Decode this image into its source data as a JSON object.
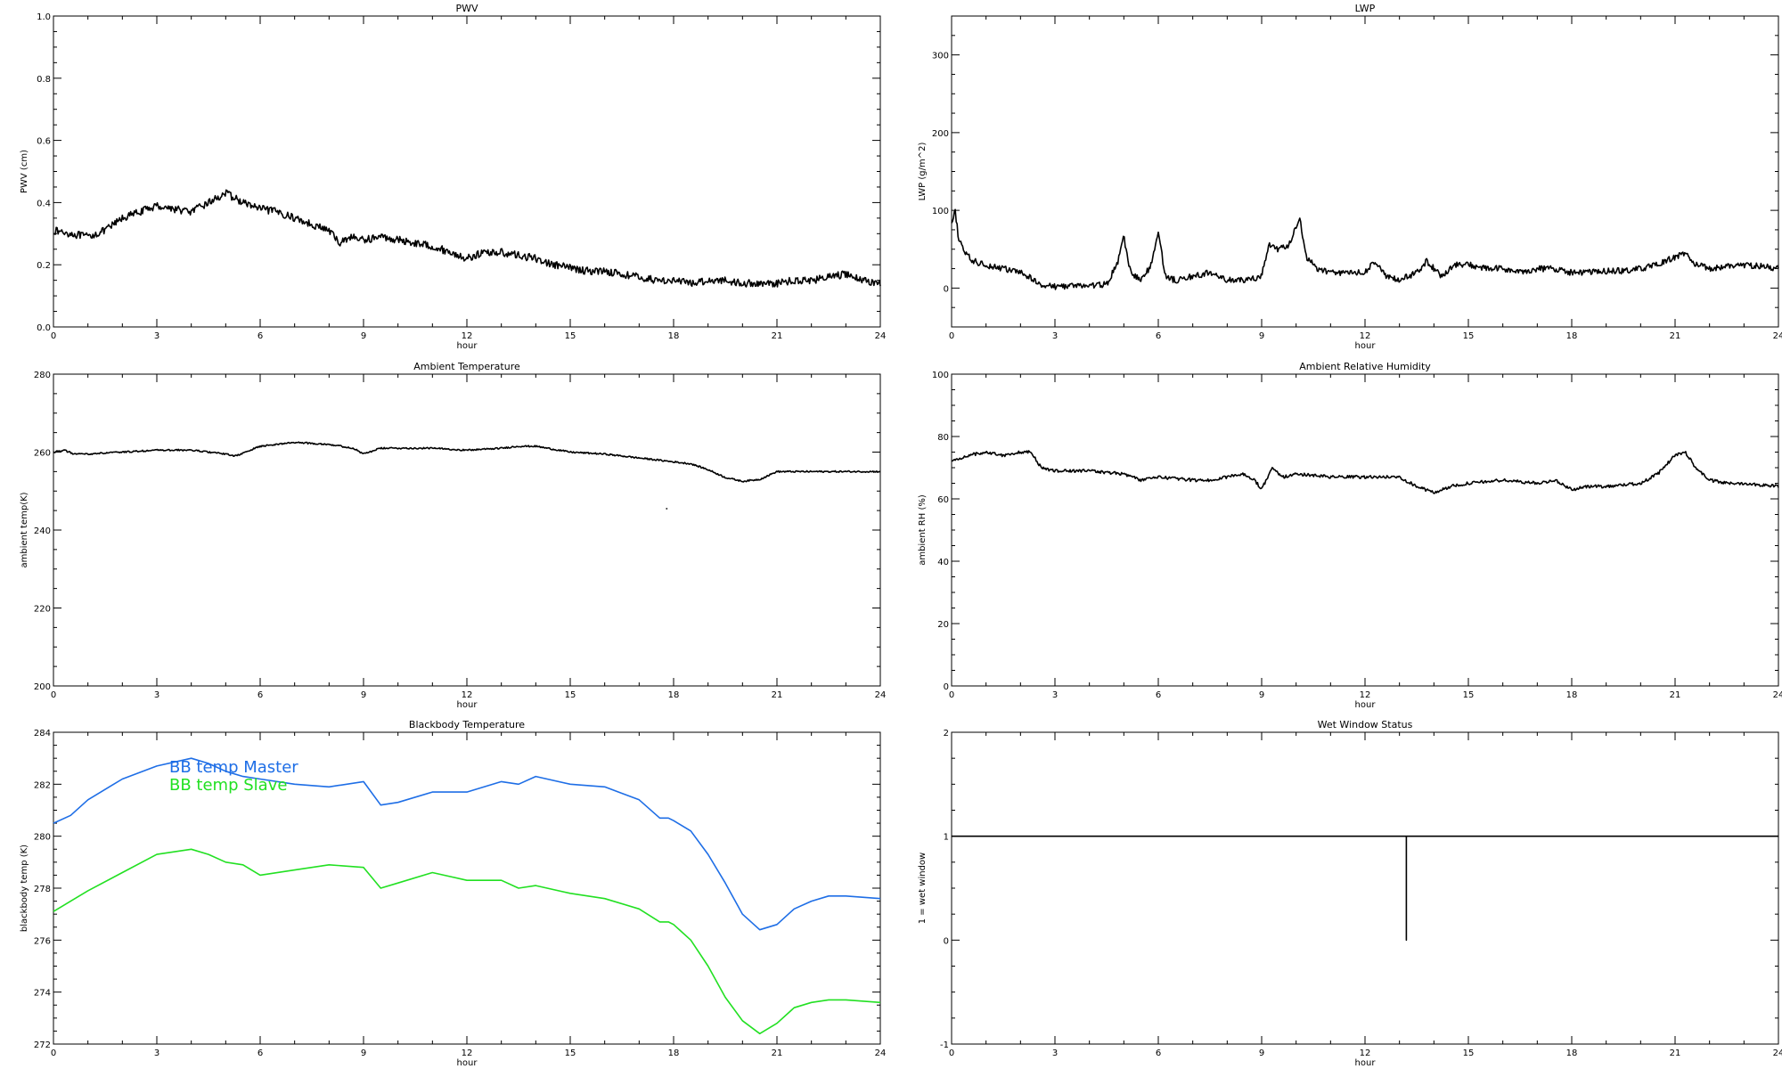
{
  "chart_data": [
    {
      "id": "pwv",
      "type": "line",
      "title": "PWV",
      "xlabel": "hour",
      "ylabel": "PWV (cm)",
      "xlim": [
        0,
        24
      ],
      "ylim": [
        0,
        1
      ],
      "xticks": [
        "0",
        "3",
        "6",
        "9",
        "12",
        "15",
        "18",
        "21",
        "24"
      ],
      "yticks": [
        0,
        0.2,
        0.4,
        0.6,
        0.8,
        1.0
      ],
      "ytick_labels": [
        "0.0",
        "0.2",
        "0.4",
        "0.6",
        "0.8",
        "1.0"
      ],
      "series": [
        {
          "color": "#000000",
          "noise": 0.012,
          "x": [
            0,
            0.5,
            1,
            1.5,
            2,
            2.5,
            3,
            3.5,
            4,
            4.5,
            5,
            5.5,
            6,
            6.5,
            7,
            7.5,
            8,
            8.3,
            8.6,
            9,
            9.5,
            10,
            10.5,
            11,
            11.5,
            12,
            12.5,
            13,
            13.5,
            14,
            14.5,
            15,
            15.5,
            16,
            16.5,
            17,
            17.5,
            18,
            18.5,
            19,
            19.5,
            20,
            20.5,
            21,
            21.5,
            22,
            22.5,
            23,
            23.5,
            24
          ],
          "y": [
            0.31,
            0.3,
            0.29,
            0.31,
            0.35,
            0.37,
            0.39,
            0.38,
            0.37,
            0.4,
            0.43,
            0.4,
            0.38,
            0.37,
            0.35,
            0.33,
            0.31,
            0.27,
            0.29,
            0.28,
            0.29,
            0.28,
            0.27,
            0.26,
            0.24,
            0.22,
            0.24,
            0.24,
            0.23,
            0.22,
            0.2,
            0.19,
            0.18,
            0.18,
            0.17,
            0.16,
            0.15,
            0.15,
            0.14,
            0.15,
            0.15,
            0.14,
            0.14,
            0.14,
            0.15,
            0.15,
            0.16,
            0.17,
            0.15,
            0.14
          ]
        }
      ]
    },
    {
      "id": "lwp",
      "type": "line",
      "title": "LWP",
      "xlabel": "hour",
      "ylabel": "LWP (g/m^2)",
      "xlim": [
        0,
        24
      ],
      "ylim": [
        -50,
        350
      ],
      "xticks": [
        "0",
        "3",
        "6",
        "9",
        "12",
        "15",
        "18",
        "21",
        "24"
      ],
      "yticks": [
        0,
        100,
        200,
        300
      ],
      "ytick_labels": [
        "0",
        "100",
        "200",
        "300"
      ],
      "series": [
        {
          "color": "#000000",
          "noise": 4,
          "x": [
            0,
            0.1,
            0.2,
            0.4,
            0.6,
            1,
            1.5,
            2,
            2.4,
            2.7,
            3,
            3.5,
            4,
            4.5,
            4.8,
            5.0,
            5.2,
            5.5,
            5.8,
            6.0,
            6.2,
            6.5,
            7,
            7.5,
            8,
            8.5,
            9,
            9.2,
            9.5,
            9.8,
            10.1,
            10.3,
            10.6,
            11,
            11.5,
            12,
            12.3,
            12.6,
            13,
            13.5,
            13.8,
            14.2,
            14.6,
            15,
            15.5,
            16,
            16.5,
            17,
            17.5,
            18,
            18.5,
            19,
            19.5,
            20,
            20.5,
            21,
            21.3,
            21.6,
            22,
            22.5,
            23,
            23.5,
            24
          ],
          "y": [
            80,
            100,
            65,
            45,
            35,
            30,
            25,
            20,
            10,
            3,
            2,
            3,
            3,
            5,
            30,
            65,
            20,
            10,
            30,
            75,
            15,
            10,
            15,
            20,
            10,
            10,
            15,
            55,
            50,
            55,
            90,
            40,
            25,
            20,
            20,
            20,
            35,
            15,
            10,
            20,
            35,
            15,
            30,
            30,
            25,
            25,
            20,
            25,
            25,
            20,
            20,
            22,
            22,
            25,
            30,
            40,
            45,
            30,
            25,
            28,
            30,
            28,
            25
          ]
        }
      ]
    },
    {
      "id": "ambient-temperature",
      "type": "line",
      "title": "Ambient Temperature",
      "xlabel": "hour",
      "ylabel": "ambient temp(K)",
      "xlim": [
        0,
        24
      ],
      "ylim": [
        200,
        280
      ],
      "xticks": [
        "0",
        "3",
        "6",
        "9",
        "12",
        "15",
        "18",
        "21",
        "24"
      ],
      "yticks": [
        200,
        220,
        240,
        260,
        280
      ],
      "ytick_labels": [
        "200",
        "220",
        "240",
        "260",
        "280"
      ],
      "series": [
        {
          "color": "#000000",
          "noise": 0.2,
          "x": [
            0,
            0.3,
            0.6,
            1,
            2,
            3,
            4,
            5,
            5.3,
            6,
            7,
            8,
            8.7,
            9,
            9.5,
            10,
            11,
            12,
            13,
            13.5,
            14,
            15,
            16,
            17,
            17.5,
            18,
            18.5,
            19,
            19.5,
            20,
            20.5,
            21,
            22,
            23,
            24
          ],
          "y": [
            260,
            260.5,
            259.5,
            259.5,
            260,
            260.5,
            260.5,
            259.5,
            259,
            261.5,
            262.5,
            262,
            261,
            259.5,
            261,
            261,
            261,
            260.5,
            261,
            261.5,
            261.5,
            260,
            259.5,
            258.5,
            258,
            257.5,
            257,
            255.5,
            253.5,
            252.5,
            253,
            255,
            255,
            255,
            255
          ]
        }
      ],
      "outlier": {
        "x": 17.8,
        "y": 245.5
      }
    },
    {
      "id": "ambient-relative-humidity",
      "type": "line",
      "title": "Ambient Relative Humidity",
      "xlabel": "hour",
      "ylabel": "ambient RH (%)",
      "xlim": [
        0,
        24
      ],
      "ylim": [
        0,
        100
      ],
      "xticks": [
        "0",
        "3",
        "6",
        "9",
        "12",
        "15",
        "18",
        "21",
        "24"
      ],
      "yticks": [
        0,
        20,
        40,
        60,
        80,
        100
      ],
      "ytick_labels": [
        "0",
        "20",
        "40",
        "60",
        "80",
        "100"
      ],
      "series": [
        {
          "color": "#000000",
          "noise": 0.5,
          "x": [
            0,
            0.5,
            1,
            1.5,
            2,
            2.3,
            2.6,
            3,
            4,
            5,
            5.5,
            6,
            7,
            7.5,
            8,
            8.5,
            8.8,
            9,
            9.3,
            9.6,
            10,
            11,
            12,
            13,
            13.5,
            14,
            14.5,
            15,
            16,
            17,
            17.5,
            18,
            18.5,
            19,
            20,
            20.5,
            21,
            21.3,
            21.6,
            22,
            22.5,
            23,
            24
          ],
          "y": [
            72,
            74,
            75,
            74,
            75,
            75,
            70,
            69,
            69,
            68,
            66,
            67,
            66,
            66,
            67,
            68,
            66,
            63,
            70,
            67,
            68,
            67,
            67,
            67,
            64,
            62,
            64,
            65,
            66,
            65,
            66,
            63,
            64,
            64,
            65,
            68,
            74,
            75,
            70,
            66,
            65,
            65,
            64
          ]
        }
      ]
    },
    {
      "id": "blackbody-temperature",
      "type": "line",
      "title": "Blackbody Temperature",
      "xlabel": "hour",
      "ylabel": "blackbody temp (K)",
      "xlim": [
        0,
        24
      ],
      "ylim": [
        272,
        284
      ],
      "xticks": [
        "0",
        "3",
        "6",
        "9",
        "12",
        "15",
        "18",
        "21",
        "24"
      ],
      "yticks": [
        272,
        274,
        276,
        278,
        280,
        282,
        284
      ],
      "ytick_labels": [
        "272",
        "274",
        "276",
        "278",
        "280",
        "282",
        "284"
      ],
      "series": [
        {
          "name": "BB temp Master",
          "color": "#1e6ee6",
          "noise": 0,
          "x": [
            0,
            0.5,
            1,
            2,
            3,
            4,
            4.5,
            5,
            5.5,
            6,
            7,
            8,
            9,
            9.5,
            10,
            11,
            12,
            13,
            13.5,
            14,
            15,
            16,
            17,
            17.6,
            17.85,
            18,
            18.5,
            19,
            19.5,
            20,
            20.5,
            21,
            21.5,
            22,
            22.5,
            23,
            24
          ],
          "y": [
            280.5,
            280.8,
            281.4,
            282.2,
            282.7,
            283.0,
            282.8,
            282.5,
            282.3,
            282.2,
            282.0,
            281.9,
            282.1,
            281.2,
            281.3,
            281.7,
            281.7,
            282.1,
            282.0,
            282.3,
            282.0,
            281.9,
            281.4,
            280.7,
            280.7,
            280.6,
            280.2,
            279.3,
            278.2,
            277.0,
            276.4,
            276.6,
            277.2,
            277.5,
            277.7,
            277.7,
            277.6
          ]
        },
        {
          "name": "BB temp Slave",
          "color": "#22e022",
          "noise": 0,
          "x": [
            0,
            0.5,
            1,
            2,
            3,
            4,
            4.5,
            5,
            5.5,
            6,
            7,
            8,
            9,
            9.5,
            10,
            11,
            12,
            12.5,
            13,
            13.5,
            14,
            15,
            16,
            17,
            17.6,
            17.85,
            18,
            18.5,
            19,
            19.5,
            20,
            20.5,
            21,
            21.5,
            22,
            22.5,
            23,
            24
          ],
          "y": [
            277.1,
            277.5,
            277.9,
            278.6,
            279.3,
            279.5,
            279.3,
            279.0,
            278.9,
            278.5,
            278.7,
            278.9,
            278.8,
            278.0,
            278.2,
            278.6,
            278.3,
            278.3,
            278.3,
            278.0,
            278.1,
            277.8,
            277.6,
            277.2,
            276.7,
            276.7,
            276.6,
            276.0,
            275.0,
            273.8,
            272.9,
            272.4,
            272.8,
            273.4,
            273.6,
            273.7,
            273.7,
            273.6
          ]
        }
      ],
      "legend_position": "top-left"
    },
    {
      "id": "wet-window-status",
      "type": "line",
      "title": "Wet Window Status",
      "xlabel": "hour",
      "ylabel": "1 = wet window",
      "xlim": [
        0,
        24
      ],
      "ylim": [
        -1,
        2
      ],
      "xticks": [
        "0",
        "3",
        "6",
        "9",
        "12",
        "15",
        "18",
        "21",
        "24"
      ],
      "yticks": [
        -1,
        0,
        1,
        2
      ],
      "ytick_labels": [
        "-1",
        "0",
        "1",
        "2"
      ],
      "series": [
        {
          "color": "#000000",
          "noise": 0,
          "x": [
            0,
            13.2,
            13.2,
            13.2,
            24
          ],
          "y": [
            1,
            1,
            0,
            1,
            1
          ]
        }
      ]
    }
  ]
}
